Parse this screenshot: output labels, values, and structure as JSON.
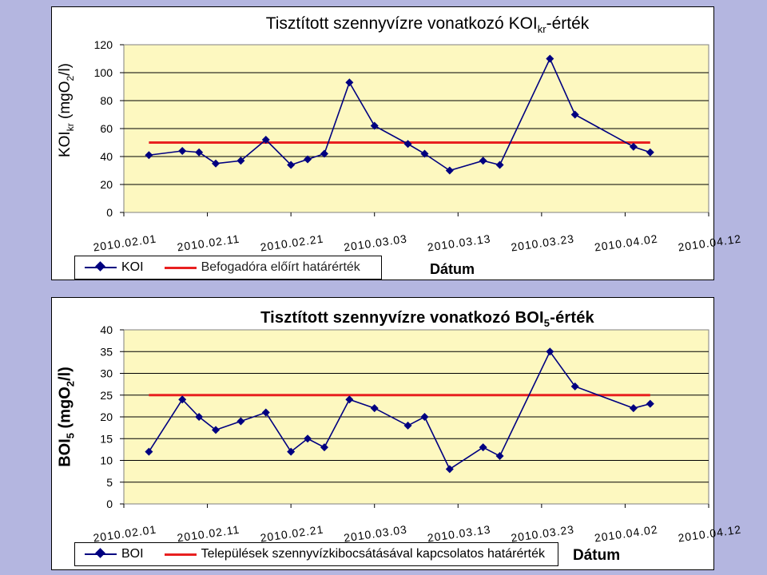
{
  "colors": {
    "background": "#b4b6e0",
    "series": "#000080",
    "threshold": "#e82020",
    "plot_area": "#fdf8c0"
  },
  "icons": {
    "series_marker": "diamond-marker-icon",
    "threshold_line": "red-line-icon"
  },
  "chart1": {
    "title_main": "Tisztított szennyvízre vonatkozó KOI",
    "title_sub": "kr",
    "title_tail": "-érték",
    "ylabel_main": "KOI",
    "ylabel_sub": "kr",
    "ylabel_tail": " (mgO",
    "ylabel_sub2": "2",
    "ylabel_end": "/l)",
    "xlabel": "Dátum",
    "legend_series": "KOI",
    "legend_threshold": "Befogadóra előírt határérték"
  },
  "chart2": {
    "title_main": "Tisztított szennyvízre vonatkozó BOI",
    "title_sub": "5",
    "title_tail": "-érték",
    "ylabel_main": "BOI",
    "ylabel_sub": "5",
    "ylabel_tail": " (mgO",
    "ylabel_sub2": "2",
    "ylabel_end": "/l)",
    "xlabel": "Dátum",
    "legend_series": "BOI",
    "legend_threshold": "Települések szennyvízkibocsátásával kapcsolatos határérték"
  },
  "chart_data": [
    {
      "type": "line",
      "title": "Tisztított szennyvízre vonatkozó KOIkr-érték",
      "xlabel": "Dátum",
      "ylabel": "KOIkr (mgO2/l)",
      "x_tick_labels": [
        "2010.02.01",
        "2010.02.11",
        "2010.02.21",
        "2010.03.03",
        "2010.03.13",
        "2010.03.23",
        "2010.04.02",
        "2010.04.12"
      ],
      "xlim": [
        "2010.02.01",
        "2010.04.12"
      ],
      "ylim": [
        0,
        120
      ],
      "yticks": [
        0,
        20,
        40,
        60,
        80,
        100,
        120
      ],
      "grid": "horizontal",
      "legend_position": "bottom",
      "series": [
        {
          "name": "KOI",
          "x": [
            "2010.02.04",
            "2010.02.08",
            "2010.02.10",
            "2010.02.12",
            "2010.02.15",
            "2010.02.18",
            "2010.02.21",
            "2010.02.23",
            "2010.02.25",
            "2010.02.28",
            "2010.03.03",
            "2010.03.07",
            "2010.03.09",
            "2010.03.12",
            "2010.03.16",
            "2010.03.18",
            "2010.03.24",
            "2010.03.27",
            "2010.04.03",
            "2010.04.05"
          ],
          "y": [
            41,
            44,
            43,
            35,
            37,
            52,
            34,
            38,
            42,
            93,
            62,
            49,
            42,
            30,
            37,
            34,
            110,
            70,
            47,
            43
          ]
        },
        {
          "name": "Befogadóra előírt határérték",
          "x": [
            "2010.02.04",
            "2010.04.05"
          ],
          "y": [
            50,
            50
          ]
        }
      ]
    },
    {
      "type": "line",
      "title": "Tisztított szennyvízre vonatkozó BOI5-érték",
      "xlabel": "Dátum",
      "ylabel": "BOI5 (mgO2/l)",
      "x_tick_labels": [
        "2010.02.01",
        "2010.02.11",
        "2010.02.21",
        "2010.03.03",
        "2010.03.13",
        "2010.03.23",
        "2010.04.02",
        "2010.04.12"
      ],
      "xlim": [
        "2010.02.01",
        "2010.04.12"
      ],
      "ylim": [
        0,
        40
      ],
      "yticks": [
        0,
        5,
        10,
        15,
        20,
        25,
        30,
        35,
        40
      ],
      "grid": "horizontal",
      "legend_position": "bottom",
      "series": [
        {
          "name": "BOI",
          "x": [
            "2010.02.04",
            "2010.02.08",
            "2010.02.10",
            "2010.02.12",
            "2010.02.15",
            "2010.02.18",
            "2010.02.21",
            "2010.02.23",
            "2010.02.25",
            "2010.02.28",
            "2010.03.03",
            "2010.03.07",
            "2010.03.09",
            "2010.03.12",
            "2010.03.16",
            "2010.03.18",
            "2010.03.24",
            "2010.03.27",
            "2010.04.03",
            "2010.04.05"
          ],
          "y": [
            12,
            24,
            20,
            17,
            19,
            21,
            12,
            15,
            13,
            24,
            22,
            18,
            20,
            8,
            13,
            11,
            35,
            27,
            22,
            23
          ]
        },
        {
          "name": "Települések szennyvízkibocsátásával kapcsolatos határérték",
          "x": [
            "2010.02.04",
            "2010.04.05"
          ],
          "y": [
            25,
            25
          ]
        }
      ]
    }
  ]
}
